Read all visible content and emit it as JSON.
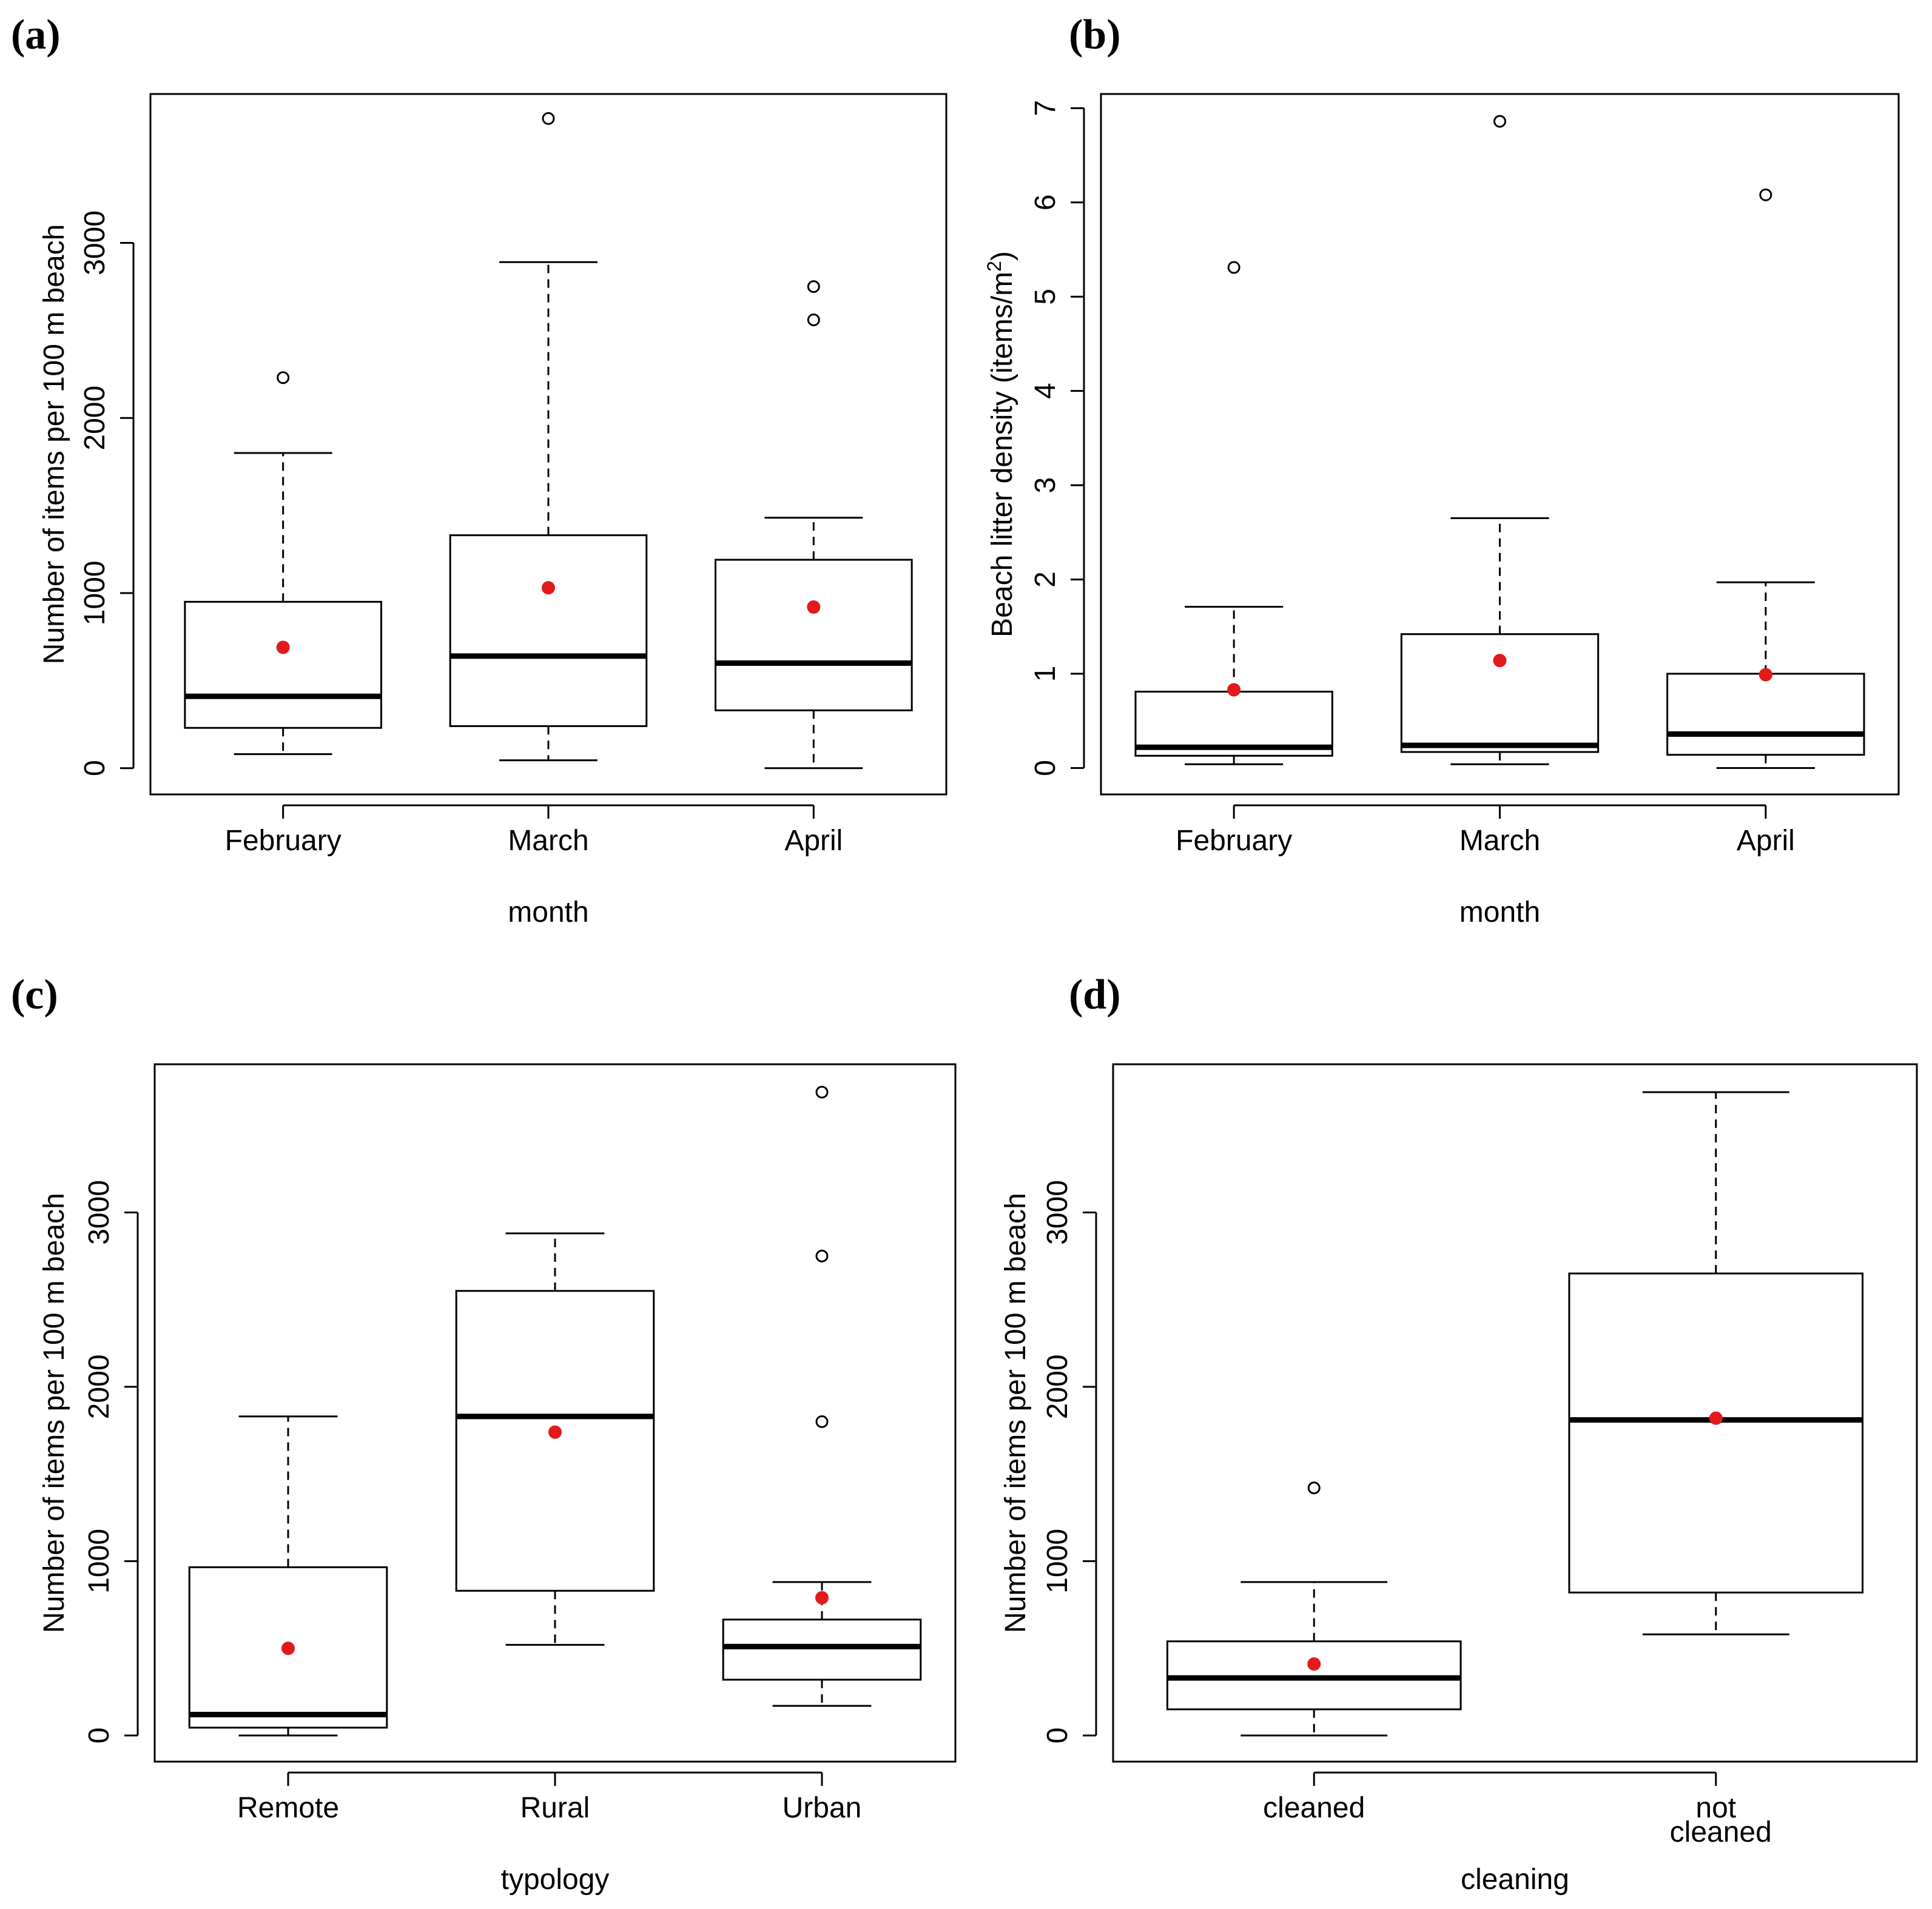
{
  "chart_data": [
    {
      "panel_label": "(a)",
      "type": "box",
      "xlabel": "month",
      "ylabel": "Number of items per 100 m beach",
      "ylim": [
        -150,
        3850
      ],
      "yticks": [
        "0",
        "1000",
        "2000",
        "3000"
      ],
      "categories": [
        "February",
        "March",
        "April"
      ],
      "boxes": [
        {
          "category": "February",
          "whisker_low": 80,
          "q1": 230,
          "median": 410,
          "q3": 950,
          "whisker_high": 1800,
          "mean": 690,
          "outliers": [
            2230
          ]
        },
        {
          "category": "March",
          "whisker_low": 45,
          "q1": 240,
          "median": 640,
          "q3": 1330,
          "whisker_high": 2890,
          "mean": 1030,
          "outliers": [
            3710
          ]
        },
        {
          "category": "April",
          "whisker_low": 0,
          "q1": 330,
          "median": 600,
          "q3": 1190,
          "whisker_high": 1430,
          "mean": 920,
          "outliers": [
            2560,
            2750
          ]
        }
      ]
    },
    {
      "panel_label": "(b)",
      "type": "box",
      "xlabel": "month",
      "ylabel": "Beach litter density (items/m",
      "ylabel_sup": "2",
      "ylabel_end": ")",
      "ylim": [
        -0.28,
        7.15
      ],
      "yticks": [
        "0",
        "1",
        "2",
        "3",
        "4",
        "5",
        "6",
        "7"
      ],
      "categories": [
        "February",
        "March",
        "April"
      ],
      "boxes": [
        {
          "category": "February",
          "whisker_low": 0.04,
          "q1": 0.13,
          "median": 0.22,
          "q3": 0.81,
          "whisker_high": 1.71,
          "mean": 0.83,
          "outliers": [
            5.31
          ]
        },
        {
          "category": "March",
          "whisker_low": 0.04,
          "q1": 0.17,
          "median": 0.24,
          "q3": 1.42,
          "whisker_high": 2.65,
          "mean": 1.14,
          "outliers": [
            6.86
          ]
        },
        {
          "category": "April",
          "whisker_low": 0.0,
          "q1": 0.14,
          "median": 0.36,
          "q3": 1.0,
          "whisker_high": 1.97,
          "mean": 0.99,
          "outliers": [
            6.08
          ]
        }
      ]
    },
    {
      "panel_label": "(c)",
      "type": "box",
      "xlabel": "typology",
      "ylabel": "Number of items per 100 m beach",
      "ylim": [
        -150,
        3850
      ],
      "yticks": [
        "0",
        "1000",
        "2000",
        "3000"
      ],
      "categories": [
        "Remote",
        "Rural",
        "Urban"
      ],
      "boxes": [
        {
          "category": "Remote",
          "whisker_low": 0,
          "q1": 45,
          "median": 120,
          "q3": 965,
          "whisker_high": 1830,
          "mean": 500,
          "outliers": []
        },
        {
          "category": "Rural",
          "whisker_low": 520,
          "q1": 830,
          "median": 1830,
          "q3": 2550,
          "whisker_high": 2880,
          "mean": 1740,
          "outliers": []
        },
        {
          "category": "Urban",
          "whisker_low": 170,
          "q1": 320,
          "median": 510,
          "q3": 665,
          "whisker_high": 880,
          "mean": 790,
          "outliers": [
            1800,
            2750,
            3690
          ]
        }
      ]
    },
    {
      "panel_label": "(d)",
      "type": "box",
      "xlabel": "cleaning",
      "ylabel": "Number of items per 100 m beach",
      "ylim": [
        -150,
        3850
      ],
      "yticks": [
        "0",
        "1000",
        "2000",
        "3000"
      ],
      "categories": [
        "cleaned",
        "not\ncleaned"
      ],
      "boxes": [
        {
          "category": "cleaned",
          "whisker_low": 0,
          "q1": 150,
          "median": 330,
          "q3": 540,
          "whisker_high": 880,
          "mean": 410,
          "outliers": [
            1420
          ]
        },
        {
          "category": "not cleaned",
          "whisker_low": 580,
          "q1": 820,
          "median": 1810,
          "q3": 2650,
          "whisker_high": 3690,
          "mean": 1820,
          "outliers": []
        }
      ]
    }
  ],
  "colors": {
    "mean_marker": "#e31a1c",
    "lines": "#000000",
    "background": "#ffffff"
  }
}
